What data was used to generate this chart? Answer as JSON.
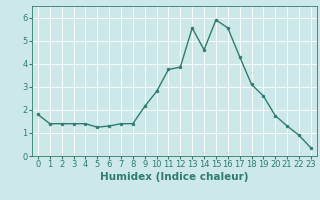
{
  "x": [
    0,
    1,
    2,
    3,
    4,
    5,
    6,
    7,
    8,
    9,
    10,
    11,
    12,
    13,
    14,
    15,
    16,
    17,
    18,
    19,
    20,
    21,
    22,
    23
  ],
  "y": [
    1.8,
    1.4,
    1.4,
    1.4,
    1.4,
    1.25,
    1.3,
    1.4,
    1.4,
    2.15,
    2.8,
    3.75,
    3.85,
    5.55,
    4.6,
    5.9,
    5.55,
    4.3,
    3.1,
    2.6,
    1.75,
    1.3,
    0.9,
    0.35
  ],
  "line_color": "#2e7d6e",
  "marker": "o",
  "marker_size": 2.0,
  "bg_color": "#cde8e8",
  "grid_color": "#ffffff",
  "xlabel": "Humidex (Indice chaleur)",
  "ylabel": "",
  "xlim": [
    -0.5,
    23.5
  ],
  "ylim": [
    0,
    6.5
  ],
  "yticks": [
    0,
    1,
    2,
    3,
    4,
    5,
    6
  ],
  "xticks": [
    0,
    1,
    2,
    3,
    4,
    5,
    6,
    7,
    8,
    9,
    10,
    11,
    12,
    13,
    14,
    15,
    16,
    17,
    18,
    19,
    20,
    21,
    22,
    23
  ],
  "tick_color": "#2e7d6e",
  "label_color": "#2e7d6e",
  "font_size": 6.0,
  "xlabel_fontsize": 7.5,
  "linewidth": 1.0
}
